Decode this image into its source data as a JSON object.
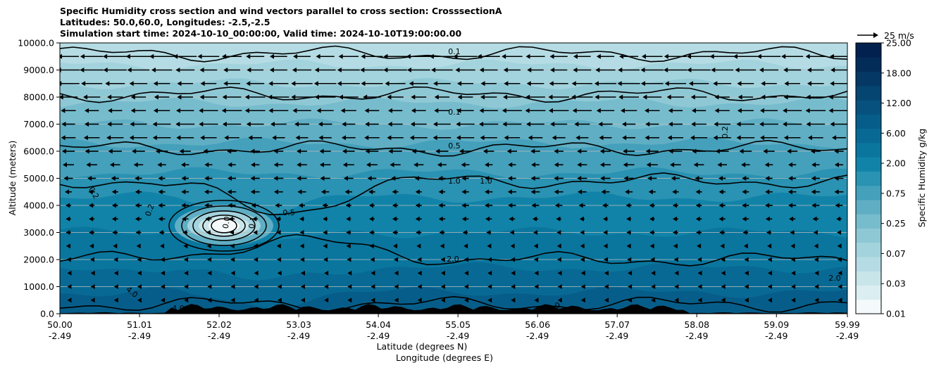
{
  "title_lines": [
    "Specific Humidity cross section and wind vectors parallel to cross section: CrosssectionA",
    "Latitudes: 50.0,60.0, Longitudes: -2.5,-2.5",
    "Simulation start time: 2024-10-10_00:00:00, Valid time: 2024-10-10T19:00:00.00"
  ],
  "chart_data": {
    "type": "contour_cross_section",
    "title": "Specific Humidity cross section and wind vectors parallel to cross section: CrosssectionA",
    "ylabel": "Altitude (meters)",
    "xlabel_lines": [
      "Latitude (degrees N)",
      "Longitude (degrees E)"
    ],
    "ylim": [
      0,
      10000
    ],
    "yticks": [
      "0.0",
      "1000.0",
      "2000.0",
      "3000.0",
      "4000.0",
      "5000.0",
      "6000.0",
      "7000.0",
      "8000.0",
      "9000.0",
      "10000.0"
    ],
    "ytick_values": [
      0,
      1000,
      2000,
      3000,
      4000,
      5000,
      6000,
      7000,
      8000,
      9000,
      10000
    ],
    "xticks": [
      {
        "lat": "50.00",
        "lon": "-2.49"
      },
      {
        "lat": "51.01",
        "lon": "-2.49"
      },
      {
        "lat": "52.02",
        "lon": "-2.49"
      },
      {
        "lat": "53.03",
        "lon": "-2.49"
      },
      {
        "lat": "54.04",
        "lon": "-2.49"
      },
      {
        "lat": "55.05",
        "lon": "-2.49"
      },
      {
        "lat": "56.06",
        "lon": "-2.49"
      },
      {
        "lat": "57.07",
        "lon": "-2.49"
      },
      {
        "lat": "58.08",
        "lon": "-2.49"
      },
      {
        "lat": "59.09",
        "lon": "-2.49"
      },
      {
        "lat": "59.99",
        "lon": "-2.49"
      }
    ],
    "xlim": [
      50.0,
      59.99
    ],
    "grid": "horizontal",
    "colorbar": {
      "label": "Specific Humidity g/kg",
      "tick_labels": [
        "0.01",
        "0.03",
        "0.07",
        "0.25",
        "0.75",
        "2.00",
        "6.00",
        "12.00",
        "18.00",
        "25.00"
      ],
      "levels": [
        0.01,
        0.02,
        0.03,
        0.05,
        0.07,
        0.1,
        0.25,
        0.5,
        0.75,
        1.0,
        2.0,
        3.0,
        6.0,
        8.0,
        12.0,
        15.0,
        18.0,
        20.0,
        25.0
      ],
      "colors": [
        "#f4fafb",
        "#dbeef1",
        "#c8e5ea",
        "#b5dce4",
        "#a3d3dd",
        "#8fc8d5",
        "#77bccd",
        "#5faec4",
        "#44a0bb",
        "#2a92b2",
        "#1283a8",
        "#0a769e",
        "#086a94",
        "#075d89",
        "#06517d",
        "#054571",
        "#053865",
        "#042c59",
        "#03214e"
      ]
    },
    "reference_vector": {
      "label": "25 m/s",
      "value": 25
    },
    "contour_labels": [
      "0.1",
      "0.1",
      "0.5",
      "1.0",
      "1.0",
      "0.5",
      "2.0",
      "0.2",
      "0.2",
      "4.0",
      "4.0",
      "2.0",
      "4.0",
      "0.2",
      "0.0",
      "0.1"
    ],
    "contour_levels": [
      0.1,
      0.2,
      0.5,
      1.0,
      2.0,
      4.0
    ],
    "wind_rows_altitude": [
      9500,
      9000,
      8500,
      8000,
      7500,
      7000,
      6500,
      6000,
      5500,
      5000,
      4500,
      4000,
      3500,
      3000,
      2500,
      2000,
      1500,
      1000,
      500
    ],
    "wind_speed_rows_ms": [
      22,
      21,
      20,
      19,
      18,
      17,
      16,
      12,
      10,
      9,
      8,
      7,
      6,
      5,
      4,
      3,
      2,
      1.5,
      1
    ],
    "terrain_peak_m": 360
  },
  "colors": {
    "contour": "#000000",
    "grid": "#bdbdbd",
    "terrain": "#000000"
  }
}
